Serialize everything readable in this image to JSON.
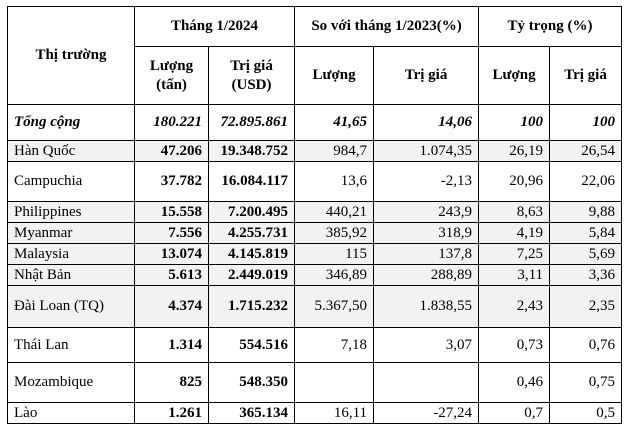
{
  "header": {
    "market": "Thị trường",
    "group_jan2024": "Tháng 1/2024",
    "group_vs2023": "So với tháng 1/2023(%)",
    "group_share": "Tỷ trọng (%)",
    "vol_tons_line1": "Lượng",
    "vol_tons_line2": "(tấn)",
    "value_usd_line1": "Trị giá",
    "value_usd_line2": "(USD)",
    "vol": "Lượng",
    "value": "Trị giá",
    "share_vol": "Lượng",
    "share_value": "Trị giá"
  },
  "rows": [
    {
      "market": "Tổng cộng",
      "vol": "180.221",
      "value": "72.895.861",
      "vol_pct": "41,65",
      "value_pct": "14,06",
      "share_vol": "100",
      "share_value": "100"
    },
    {
      "market": "Hàn Quốc",
      "vol": "47.206",
      "value": "19.348.752",
      "vol_pct": "984,7",
      "value_pct": "1.074,35",
      "share_vol": "26,19",
      "share_value": "26,54"
    },
    {
      "market": "Campuchia",
      "vol": "37.782",
      "value": "16.084.117",
      "vol_pct": "13,6",
      "value_pct": "-2,13",
      "share_vol": "20,96",
      "share_value": "22,06"
    },
    {
      "market": "Philippines",
      "vol": "15.558",
      "value": "7.200.495",
      "vol_pct": "440,21",
      "value_pct": "243,9",
      "share_vol": "8,63",
      "share_value": "9,88"
    },
    {
      "market": "Myanmar",
      "vol": "7.556",
      "value": "4.255.731",
      "vol_pct": "385,92",
      "value_pct": "318,9",
      "share_vol": "4,19",
      "share_value": "5,84"
    },
    {
      "market": "Malaysia",
      "vol": "13.074",
      "value": "4.145.819",
      "vol_pct": "115",
      "value_pct": "137,8",
      "share_vol": "7,25",
      "share_value": "5,69"
    },
    {
      "market": "Nhật Bản",
      "vol": "5.613",
      "value": "2.449.019",
      "vol_pct": "346,89",
      "value_pct": "288,89",
      "share_vol": "3,11",
      "share_value": "3,36"
    },
    {
      "market": "Đài Loan (TQ)",
      "vol": "4.374",
      "value": "1.715.232",
      "vol_pct": "5.367,50",
      "value_pct": "1.838,55",
      "share_vol": "2,43",
      "share_value": "2,35"
    },
    {
      "market": "Thái Lan",
      "vol": "1.314",
      "value": "554.516",
      "vol_pct": "7,18",
      "value_pct": "3,07",
      "share_vol": "0,73",
      "share_value": "0,76"
    },
    {
      "market": "Mozambique",
      "vol": "825",
      "value": "548.350",
      "vol_pct": "",
      "value_pct": "",
      "share_vol": "0,46",
      "share_value": "0,75"
    },
    {
      "market": "Lào",
      "vol": "1.261",
      "value": "365.134",
      "vol_pct": "16,11",
      "value_pct": "-27,24",
      "share_vol": "0,7",
      "share_value": "0,5"
    }
  ]
}
